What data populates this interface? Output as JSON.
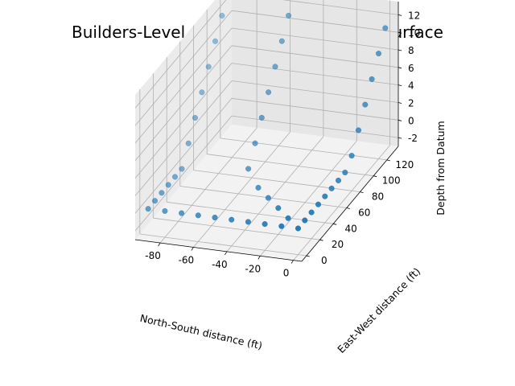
{
  "chart_data": {
    "type": "scatter",
    "projection": "3d",
    "title": "Builders-Level Observations of Terrain Surface",
    "xlabel": "North-South distance (ft)",
    "ylabel": "East-West distance (ft)",
    "zlabel": "Depth from Datum",
    "xticks": [
      "-80",
      "-60",
      "-40",
      "-20",
      "0"
    ],
    "xtick_values": [
      -80,
      -60,
      -40,
      -20,
      0
    ],
    "yticks": [
      "0",
      "20",
      "40",
      "60",
      "80",
      "100",
      "120"
    ],
    "ytick_values": [
      0,
      20,
      40,
      60,
      80,
      100,
      120
    ],
    "zticks": [
      "-2",
      "0",
      "2",
      "4",
      "6",
      "8",
      "10",
      "12"
    ],
    "ztick_values": [
      -2,
      0,
      2,
      4,
      6,
      8,
      10,
      12
    ],
    "xlim": [
      -95,
      5
    ],
    "ylim": [
      -7,
      137
    ],
    "zlim": [
      -3,
      13.5
    ],
    "grid": true,
    "marker_color": "#1f77b4",
    "points": [
      {
        "x": 0,
        "y": 0,
        "z": 0
      },
      {
        "x": 0,
        "y": 10,
        "z": 0
      },
      {
        "x": 0,
        "y": 20,
        "z": 0
      },
      {
        "x": 0,
        "y": 30,
        "z": 0
      },
      {
        "x": 0,
        "y": 40,
        "z": 0
      },
      {
        "x": 0,
        "y": 50,
        "z": 0
      },
      {
        "x": 0,
        "y": 60,
        "z": 0
      },
      {
        "x": 0,
        "y": 70,
        "z": 0
      },
      {
        "x": 0,
        "y": 80,
        "z": 1
      },
      {
        "x": 0,
        "y": 90,
        "z": 3
      },
      {
        "x": 0,
        "y": 100,
        "z": 5
      },
      {
        "x": 0,
        "y": 110,
        "z": 7
      },
      {
        "x": 0,
        "y": 120,
        "z": 9
      },
      {
        "x": 0,
        "y": 130,
        "z": 11
      },
      {
        "x": -10,
        "y": 0,
        "z": 0
      },
      {
        "x": -20,
        "y": 0,
        "z": 0
      },
      {
        "x": -30,
        "y": 0,
        "z": 0
      },
      {
        "x": -40,
        "y": 0,
        "z": 0
      },
      {
        "x": -50,
        "y": 0,
        "z": 0
      },
      {
        "x": -60,
        "y": 0,
        "z": 0
      },
      {
        "x": -70,
        "y": 0,
        "z": 0
      },
      {
        "x": -80,
        "y": 0,
        "z": 0
      },
      {
        "x": -90,
        "y": 0,
        "z": 0
      },
      {
        "x": -10,
        "y": 10,
        "z": 0
      },
      {
        "x": -20,
        "y": 20,
        "z": 0
      },
      {
        "x": -30,
        "y": 30,
        "z": 0
      },
      {
        "x": -40,
        "y": 40,
        "z": 0
      },
      {
        "x": -50,
        "y": 50,
        "z": 1
      },
      {
        "x": -50,
        "y": 60,
        "z": 3
      },
      {
        "x": -50,
        "y": 70,
        "z": 5
      },
      {
        "x": -50,
        "y": 80,
        "z": 7
      },
      {
        "x": -50,
        "y": 90,
        "z": 9
      },
      {
        "x": -50,
        "y": 100,
        "z": 11
      },
      {
        "x": -50,
        "y": 110,
        "z": 13
      },
      {
        "x": -90,
        "y": 10,
        "z": 0
      },
      {
        "x": -90,
        "y": 20,
        "z": 0
      },
      {
        "x": -90,
        "y": 30,
        "z": 0
      },
      {
        "x": -90,
        "y": 40,
        "z": 0
      },
      {
        "x": -90,
        "y": 50,
        "z": 0
      },
      {
        "x": -90,
        "y": 60,
        "z": 2
      },
      {
        "x": -90,
        "y": 70,
        "z": 4
      },
      {
        "x": -90,
        "y": 80,
        "z": 6
      },
      {
        "x": -90,
        "y": 90,
        "z": 8
      },
      {
        "x": -90,
        "y": 100,
        "z": 10
      },
      {
        "x": -90,
        "y": 110,
        "z": 12
      }
    ]
  }
}
